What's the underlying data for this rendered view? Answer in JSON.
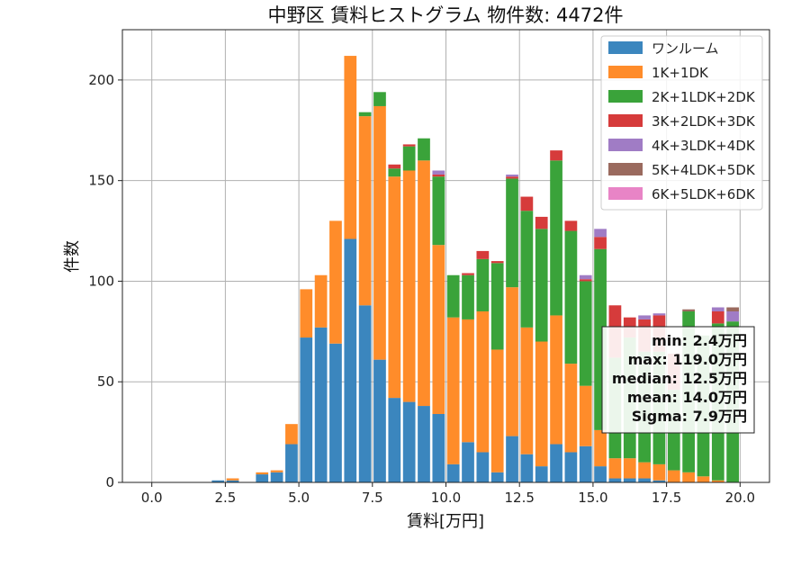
{
  "chart_data": {
    "type": "bar",
    "stacked": true,
    "title": "中野区 賃料ヒストグラム 物件数: 4472件",
    "xlabel": "賃料[万円]",
    "ylabel": "件数",
    "xlim": [
      -1.0,
      21.0
    ],
    "ylim": [
      0,
      225
    ],
    "xticks": [
      0.0,
      2.5,
      5.0,
      7.5,
      10.0,
      12.5,
      15.0,
      17.5,
      20.0
    ],
    "xtick_labels": [
      "0.0",
      "2.5",
      "5.0",
      "7.5",
      "10.0",
      "12.5",
      "15.0",
      "17.5",
      "20.0"
    ],
    "yticks": [
      0,
      50,
      100,
      150,
      200
    ],
    "ytick_labels": [
      "0",
      "50",
      "100",
      "150",
      "200"
    ],
    "grid": true,
    "legend_position": "top-right",
    "bin_width": 0.5,
    "bin_starts": [
      -0.5,
      0.0,
      0.5,
      1.0,
      1.5,
      2.0,
      2.5,
      3.0,
      3.5,
      4.0,
      4.5,
      5.0,
      5.5,
      6.0,
      6.5,
      7.0,
      7.5,
      8.0,
      8.5,
      9.0,
      9.5,
      10.0,
      10.5,
      11.0,
      11.5,
      12.0,
      12.5,
      13.0,
      13.5,
      14.0,
      14.5,
      15.0,
      15.5,
      16.0,
      16.5,
      17.0,
      17.5,
      18.0,
      18.5,
      19.0,
      19.5
    ],
    "series": [
      {
        "name": "ワンルーム",
        "color": "#3b86be",
        "values": [
          0,
          0,
          0,
          0,
          0,
          1,
          1,
          0,
          4,
          5,
          19,
          72,
          77,
          69,
          121,
          88,
          61,
          42,
          40,
          38,
          34,
          9,
          20,
          15,
          5,
          23,
          14,
          8,
          19,
          15,
          18,
          8,
          2,
          2,
          2,
          1,
          0,
          0,
          0,
          0,
          0
        ]
      },
      {
        "name": "1K+1DK",
        "color": "#ff8c2a",
        "values": [
          0,
          0,
          0,
          0,
          0,
          0,
          1,
          0,
          1,
          1,
          10,
          24,
          26,
          61,
          91,
          94,
          126,
          110,
          115,
          122,
          84,
          73,
          61,
          70,
          61,
          74,
          63,
          62,
          64,
          44,
          30,
          18,
          10,
          10,
          8,
          8,
          6,
          5,
          3,
          1,
          0
        ]
      },
      {
        "name": "2K+1LDK+2DK",
        "color": "#3aa33a",
        "values": [
          0,
          0,
          0,
          0,
          0,
          0,
          0,
          0,
          0,
          0,
          0,
          0,
          0,
          0,
          0,
          2,
          7,
          4,
          12,
          11,
          34,
          21,
          22,
          26,
          43,
          54,
          58,
          56,
          77,
          66,
          52,
          90,
          50,
          60,
          55,
          56,
          40,
          80,
          70,
          78,
          80
        ]
      },
      {
        "name": "3K+2LDK+3DK",
        "color": "#d63b3b",
        "values": [
          0,
          0,
          0,
          0,
          0,
          0,
          0,
          0,
          0,
          0,
          0,
          0,
          0,
          0,
          0,
          0,
          0,
          2,
          1,
          0,
          1,
          0,
          1,
          4,
          1,
          1,
          7,
          6,
          5,
          5,
          1,
          6,
          26,
          10,
          16,
          18,
          18,
          0,
          0,
          6,
          0
        ]
      },
      {
        "name": "4K+3LDK+4DK",
        "color": "#a07cc5",
        "values": [
          0,
          0,
          0,
          0,
          0,
          0,
          0,
          0,
          0,
          0,
          0,
          0,
          0,
          0,
          0,
          0,
          0,
          0,
          0,
          0,
          2,
          0,
          0,
          0,
          0,
          1,
          0,
          0,
          0,
          0,
          2,
          4,
          0,
          0,
          2,
          1,
          0,
          0,
          0,
          2,
          5
        ]
      },
      {
        "name": "5K+4LDK+5DK",
        "color": "#9a6a5e",
        "values": [
          0,
          0,
          0,
          0,
          0,
          0,
          0,
          0,
          0,
          0,
          0,
          0,
          0,
          0,
          0,
          0,
          0,
          0,
          0,
          0,
          0,
          0,
          0,
          0,
          0,
          0,
          0,
          0,
          0,
          0,
          0,
          0,
          0,
          0,
          0,
          0,
          0,
          1,
          0,
          0,
          2
        ]
      },
      {
        "name": "6K+5LDK+6DK",
        "color": "#e884c6",
        "values": [
          0,
          0,
          0,
          0,
          0,
          0,
          0,
          0,
          0,
          0,
          0,
          0,
          0,
          0,
          0,
          0,
          0,
          0,
          0,
          0,
          0,
          0,
          0,
          0,
          0,
          0,
          0,
          0,
          0,
          0,
          0,
          0,
          0,
          0,
          0,
          0,
          0,
          0,
          0,
          0,
          0
        ]
      }
    ],
    "annotations": [
      "min: 2.4万円",
      "max: 119.0万円",
      "median: 12.5万円",
      "mean: 14.0万円",
      "Sigma: 7.9万円"
    ]
  }
}
